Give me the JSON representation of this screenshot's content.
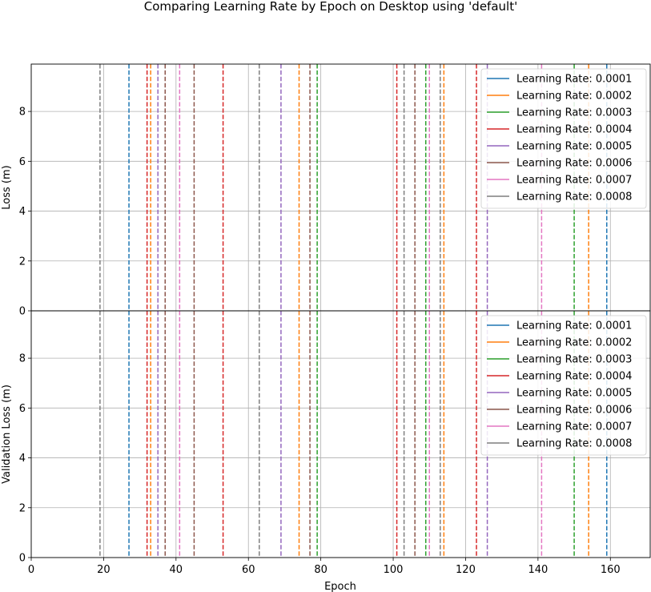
{
  "chart_data": {
    "type": "line",
    "title": "Comparing Learning Rate by Epoch on Desktop using 'default'",
    "xlabel": "Epoch",
    "xlim": [
      0,
      171
    ],
    "xticks": [
      0,
      20,
      40,
      60,
      80,
      100,
      120,
      140,
      160
    ],
    "grid": true,
    "legend_placement": "upper right",
    "series": [
      {
        "name": "Learning Rate: 0.0001",
        "color": "#1f77b4",
        "epochs": [
          27,
          159
        ]
      },
      {
        "name": "Learning Rate: 0.0002",
        "color": "#ff7f0e",
        "epochs": [
          33,
          74,
          114,
          154
        ]
      },
      {
        "name": "Learning Rate: 0.0003",
        "color": "#2ca02c",
        "epochs": [
          79,
          109,
          150
        ]
      },
      {
        "name": "Learning Rate: 0.0004",
        "color": "#d62728",
        "epochs": [
          32,
          53,
          101,
          123
        ]
      },
      {
        "name": "Learning Rate: 0.0005",
        "color": "#9467bd",
        "epochs": [
          35,
          69,
          126
        ]
      },
      {
        "name": "Learning Rate: 0.0006",
        "color": "#8c564b",
        "epochs": [
          37,
          45,
          77,
          106
        ]
      },
      {
        "name": "Learning Rate: 0.0007",
        "color": "#e377c2",
        "epochs": [
          41,
          110,
          141
        ]
      },
      {
        "name": "Learning Rate: 0.0008",
        "color": "#7f7f7f",
        "epochs": [
          19,
          63,
          103,
          113
        ]
      }
    ],
    "panels": [
      {
        "ylabel": "Loss (m)",
        "ylim": [
          0,
          9.9
        ],
        "yticks": [
          0,
          2,
          4,
          6,
          8
        ]
      },
      {
        "ylabel": "Validation Loss (m)",
        "ylim": [
          0,
          9.9
        ],
        "yticks": [
          0,
          2,
          4,
          6,
          8
        ]
      }
    ]
  }
}
